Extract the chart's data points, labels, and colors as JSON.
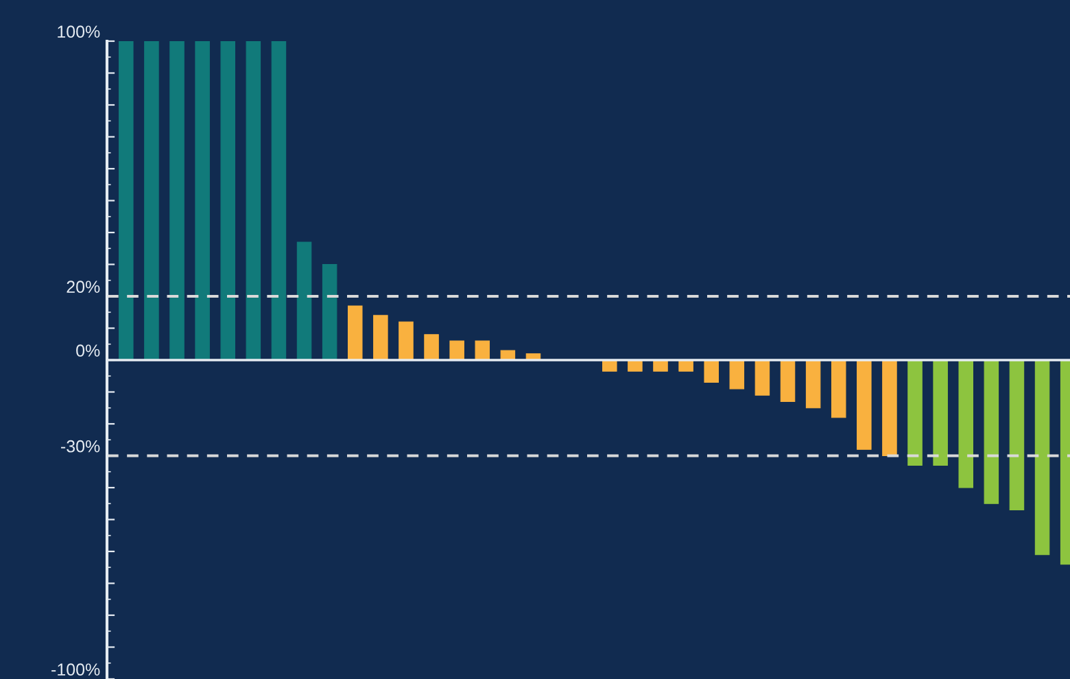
{
  "chart_data": {
    "type": "bar",
    "categories": [
      null,
      null,
      null,
      null,
      null,
      null,
      null,
      null,
      null,
      null,
      null,
      null,
      null,
      null,
      null,
      null,
      null,
      null,
      null,
      null,
      null,
      null,
      null,
      null,
      null,
      null,
      null,
      null,
      null,
      null,
      null,
      null,
      null,
      null,
      null,
      null,
      null,
      null
    ],
    "values": [
      100,
      100,
      100,
      100,
      100,
      100,
      100,
      37,
      30,
      17,
      14,
      12,
      8,
      6,
      6,
      3,
      2,
      0,
      0,
      -3.5,
      -3.5,
      -3.5,
      -3.5,
      -7,
      -9,
      -11,
      -13,
      -15,
      -18,
      -28,
      -30,
      -33,
      -33,
      -40,
      -45,
      -47,
      -61,
      -64
    ],
    "colors": [
      "#117a7a",
      "#117a7a",
      "#117a7a",
      "#117a7a",
      "#117a7a",
      "#117a7a",
      "#117a7a",
      "#117a7a",
      "#117a7a",
      "#f9b13f",
      "#f9b13f",
      "#f9b13f",
      "#f9b13f",
      "#f9b13f",
      "#f9b13f",
      "#f9b13f",
      "#f9b13f",
      "#f9b13f",
      "#f9b13f",
      "#f9b13f",
      "#f9b13f",
      "#f9b13f",
      "#f9b13f",
      "#f9b13f",
      "#f9b13f",
      "#f9b13f",
      "#f9b13f",
      "#f9b13f",
      "#f9b13f",
      "#f9b13f",
      "#f9b13f",
      "#8dc43f",
      "#8dc43f",
      "#8dc43f",
      "#8dc43f",
      "#8dc43f",
      "#8dc43f",
      "#8dc43f"
    ],
    "ylim": [
      -100,
      100
    ],
    "yticks": [
      {
        "value": 100,
        "label": "100%"
      },
      {
        "value": 90,
        "label": null
      },
      {
        "value": 80,
        "label": null
      },
      {
        "value": 70,
        "label": null
      },
      {
        "value": 60,
        "label": null
      },
      {
        "value": 50,
        "label": null
      },
      {
        "value": 40,
        "label": null
      },
      {
        "value": 30,
        "label": null
      },
      {
        "value": 20,
        "label": "20%"
      },
      {
        "value": 10,
        "label": null
      },
      {
        "value": 0,
        "label": "0%"
      },
      {
        "value": -10,
        "label": null
      },
      {
        "value": -20,
        "label": null
      },
      {
        "value": -30,
        "label": "-30%"
      },
      {
        "value": -40,
        "label": null
      },
      {
        "value": -50,
        "label": null
      },
      {
        "value": -60,
        "label": null
      },
      {
        "value": -70,
        "label": null
      },
      {
        "value": -80,
        "label": null
      },
      {
        "value": -90,
        "label": null
      },
      {
        "value": -100,
        "label": "-100%"
      }
    ],
    "ref_lines": [
      {
        "axis": "y",
        "value": 20,
        "label": null,
        "color": "#d9d9d9",
        "line_style": "dashed"
      },
      {
        "axis": "y",
        "value": -30,
        "label": null,
        "color": "#d9d9d9",
        "line_style": "dashed"
      }
    ],
    "tick_labels": "y",
    "grid": false,
    "legend": false
  }
}
